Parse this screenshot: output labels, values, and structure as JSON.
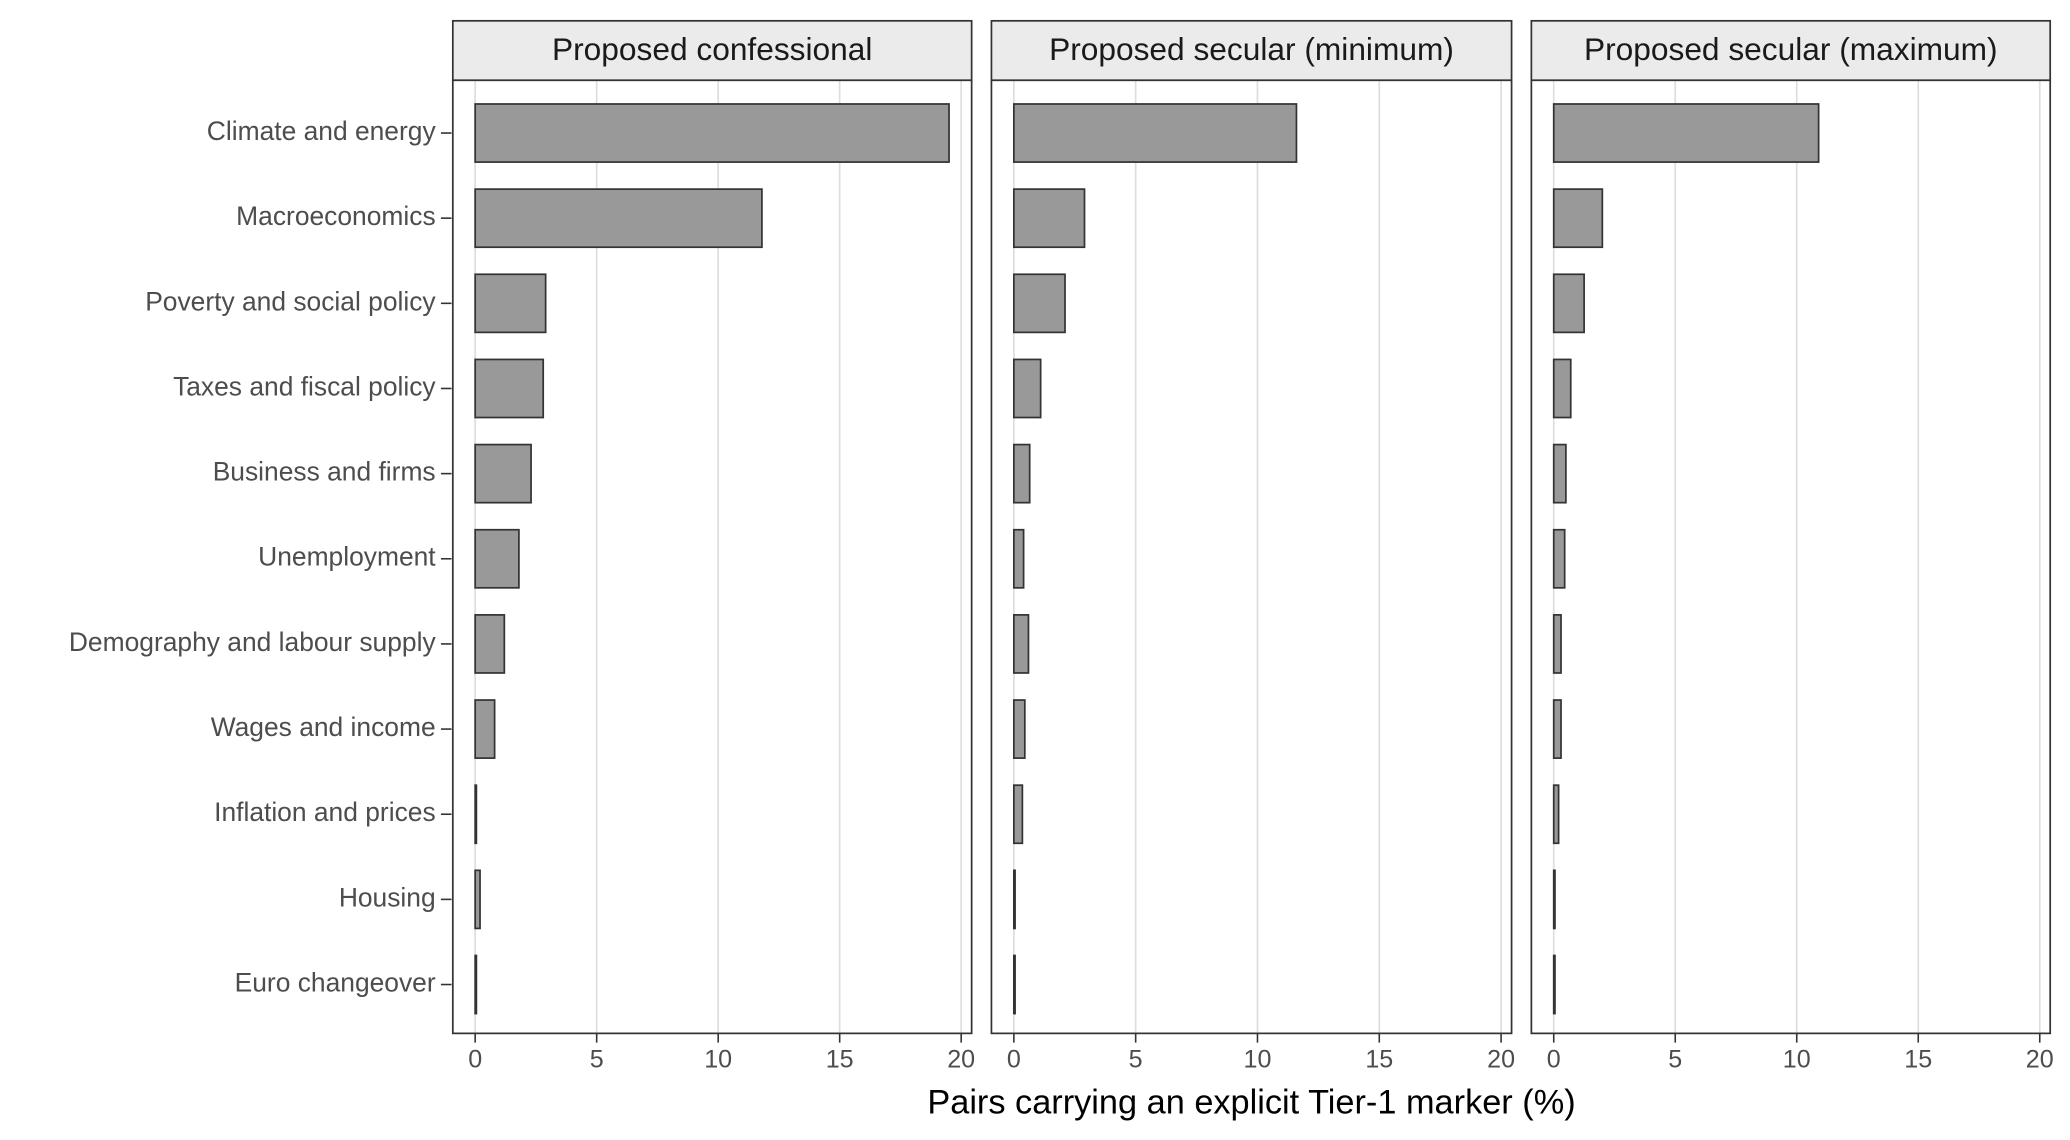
{
  "chart_data": {
    "type": "bar",
    "orientation": "horizontal",
    "facets": true,
    "xlabel": "Pairs carrying an explicit Tier-1 marker (%)",
    "categories": [
      "Climate and energy",
      "Macroeconomics",
      "Poverty and social policy",
      "Taxes and fiscal policy",
      "Business and firms",
      "Unemployment",
      "Demography and labour supply",
      "Wages and income",
      "Inflation and prices",
      "Housing",
      "Euro changeover"
    ],
    "series": [
      {
        "name": "Proposed confessional",
        "color": "#999999",
        "values": [
          19.5,
          11.8,
          2.9,
          2.8,
          2.3,
          1.8,
          1.2,
          0.8,
          0.05,
          0.2,
          0.05
        ]
      },
      {
        "name": "Proposed secular (minimum)",
        "color": "#999999",
        "values": [
          11.6,
          2.9,
          2.1,
          1.1,
          0.65,
          0.4,
          0.6,
          0.45,
          0.35,
          0.05,
          0.05
        ]
      },
      {
        "name": "Proposed secular (maximum)",
        "color": "#999999",
        "values": [
          10.9,
          2.0,
          1.25,
          0.7,
          0.5,
          0.45,
          0.3,
          0.3,
          0.2,
          0.05,
          0.05
        ]
      }
    ],
    "xlim": [
      -0.92,
      20.43
    ],
    "xticks": [
      0,
      5,
      10,
      15,
      20
    ],
    "grid": true
  }
}
